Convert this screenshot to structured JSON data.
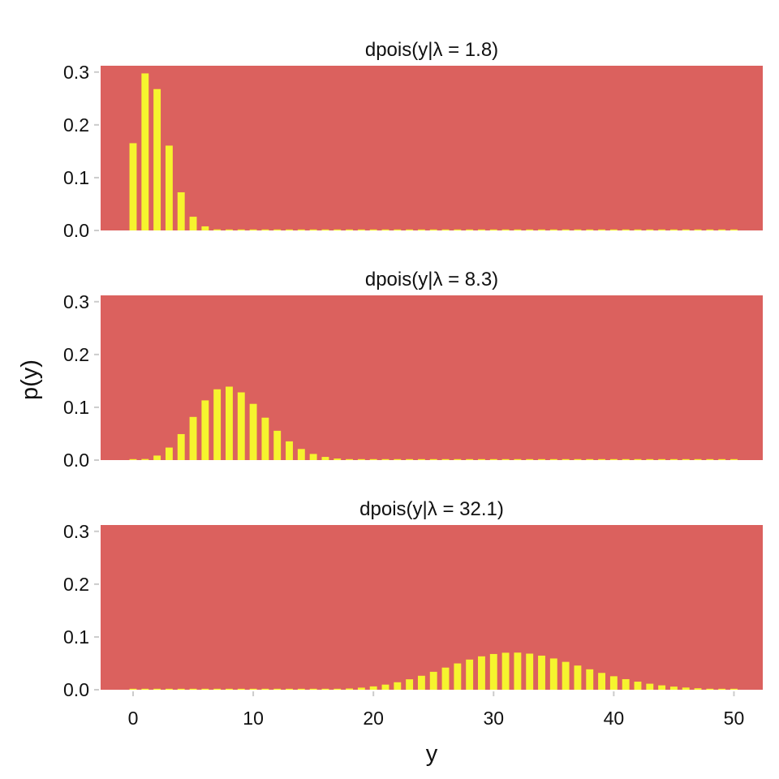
{
  "chart_data": {
    "type": "bar",
    "xlabel": "y",
    "ylabel": "p(y)",
    "xlim": [
      -2.7,
      52.4
    ],
    "ylim": [
      0,
      0.312
    ],
    "x_ticks": [
      0,
      10,
      20,
      30,
      40,
      50
    ],
    "y_ticks": [
      "0.0",
      "0.1",
      "0.2",
      "0.3"
    ],
    "y_tick_values": [
      0,
      0.1,
      0.2,
      0.3
    ],
    "grid": false,
    "colors": {
      "panel": "#DB615E",
      "bar": "#F6F42E",
      "tick": "#cccccc"
    },
    "x": [
      0,
      1,
      2,
      3,
      4,
      5,
      6,
      7,
      8,
      9,
      10,
      11,
      12,
      13,
      14,
      15,
      16,
      17,
      18,
      19,
      20,
      21,
      22,
      23,
      24,
      25,
      26,
      27,
      28,
      29,
      30,
      31,
      32,
      33,
      34,
      35,
      36,
      37,
      38,
      39,
      40,
      41,
      42,
      43,
      44,
      45,
      46,
      47,
      48,
      49,
      50
    ],
    "panels": [
      {
        "title": "dpois(y|λ = 1.8)",
        "values": [
          0.1653,
          0.2975,
          0.2678,
          0.1607,
          0.0723,
          0.026,
          0.0078,
          0.002,
          0.00045,
          9e-05,
          1.6e-05,
          0,
          0,
          0,
          0,
          0,
          0,
          0,
          0,
          0,
          0,
          0,
          0,
          0,
          0,
          0,
          0,
          0,
          0,
          0,
          0,
          0,
          0,
          0,
          0,
          0,
          0,
          0,
          0,
          0,
          0,
          0,
          0,
          0,
          0,
          0,
          0,
          0,
          0,
          0,
          0
        ]
      },
      {
        "title": "dpois(y|λ = 8.3)",
        "values": [
          0.00025,
          0.00207,
          0.00858,
          0.02374,
          0.04925,
          0.08176,
          0.1131,
          0.1341,
          0.13913,
          0.12831,
          0.10649,
          0.08036,
          0.05558,
          0.03549,
          0.02104,
          0.01164,
          0.00604,
          0.00295,
          0.00136,
          0.00059,
          0.00025,
          0.0001,
          4e-05,
          1e-05,
          0,
          0,
          0,
          0,
          0,
          0,
          0,
          0,
          0,
          0,
          0,
          0,
          0,
          0,
          0,
          0,
          0,
          0,
          0,
          0,
          0,
          0,
          0,
          0,
          0,
          0,
          0
        ]
      },
      {
        "title": "dpois(y|λ = 32.1)",
        "values": [
          0,
          0,
          0,
          0,
          0,
          0,
          0,
          0,
          0,
          0,
          0,
          1e-05,
          3e-05,
          7e-05,
          0.00016,
          0.00035,
          0.0007,
          0.00131,
          0.00234,
          0.00396,
          0.00635,
          0.00971,
          0.01417,
          0.01978,
          0.02646,
          0.03397,
          0.04194,
          0.04986,
          0.05716,
          0.06327,
          0.0677,
          0.0701,
          0.07032,
          0.0684,
          0.06458,
          0.05923,
          0.05281,
          0.04582,
          0.03871,
          0.03186,
          0.02557,
          0.02002,
          0.0153,
          0.01142,
          0.00833,
          0.00594,
          0.00415,
          0.00283,
          0.00189,
          0.00124,
          0.0008
        ]
      }
    ]
  }
}
